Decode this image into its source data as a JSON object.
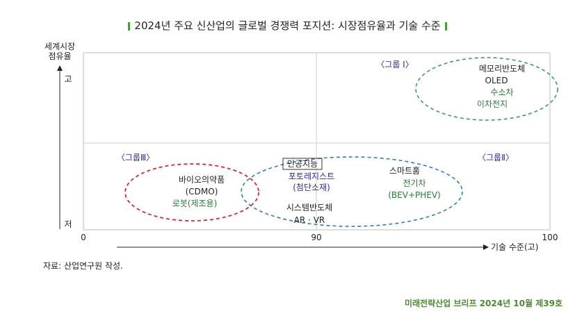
{
  "title": "2024년 주요 신산업의 글로벌 경쟁력 포지션: 시장점유율과 기술 수준",
  "source_note": "자료: 산업연구원 작성.",
  "footer": "미래전략산업 브리프 2024년 10월 제39호",
  "colors": {
    "group1": "#3a9a6a",
    "group2": "#2e7db5",
    "group3": "#d42a2a",
    "green_text": "#2a7a3a",
    "blue_text": "#2a2a9a",
    "title_bar": "#4a9a3a"
  },
  "chart_data": {
    "type": "scatter",
    "title": "2024년 주요 신산업의 글로벌 경쟁력 포지션: 시장점유율과 기술 수준",
    "xlabel": "기술 수준(고)",
    "ylabel": "세계시장\n점유율",
    "y_tick_labels": {
      "high": "고",
      "low": "저"
    },
    "x_ticks": [
      0,
      90,
      100
    ],
    "xlim": [
      0,
      100
    ],
    "x_divider": 90,
    "grid": false,
    "groups": [
      {
        "id": "group1",
        "label": "〈그룹 Ⅰ〉",
        "style": "dashed"
      },
      {
        "id": "group2",
        "label": "〈그룹Ⅱ〉",
        "style": "dashed"
      },
      {
        "id": "group3",
        "label": "〈그룹Ⅲ〉",
        "style": "dashed"
      }
    ],
    "items": [
      {
        "name": "메모리반도체",
        "group": "group1",
        "color": "black"
      },
      {
        "name": "OLED",
        "group": "group1",
        "color": "black"
      },
      {
        "name": "수소차",
        "group": "group1",
        "color": "green"
      },
      {
        "name": "이차전지",
        "group": "group1",
        "color": "green"
      },
      {
        "name": "인공지능",
        "group": "group2",
        "color": "black",
        "boxed": true
      },
      {
        "name": "포토레지스트",
        "group": "group2",
        "color": "blue"
      },
      {
        "name": "(첨단소재)",
        "group": "group2",
        "color": "blue"
      },
      {
        "name": "시스템반도체",
        "group": "group2",
        "color": "black"
      },
      {
        "name": "AR · VR",
        "group": "group2",
        "color": "black"
      },
      {
        "name": "스마트홈",
        "group": "group2",
        "color": "black"
      },
      {
        "name": "전기차",
        "group": "group2",
        "color": "green"
      },
      {
        "name": "(BEV+PHEV)",
        "group": "group2",
        "color": "green"
      },
      {
        "name": "바이오의약품",
        "group": "group3",
        "color": "black"
      },
      {
        "name": "(CDMO)",
        "group": "group3",
        "color": "black"
      },
      {
        "name": "로봇(제조용)",
        "group": "group3",
        "color": "green"
      }
    ]
  }
}
